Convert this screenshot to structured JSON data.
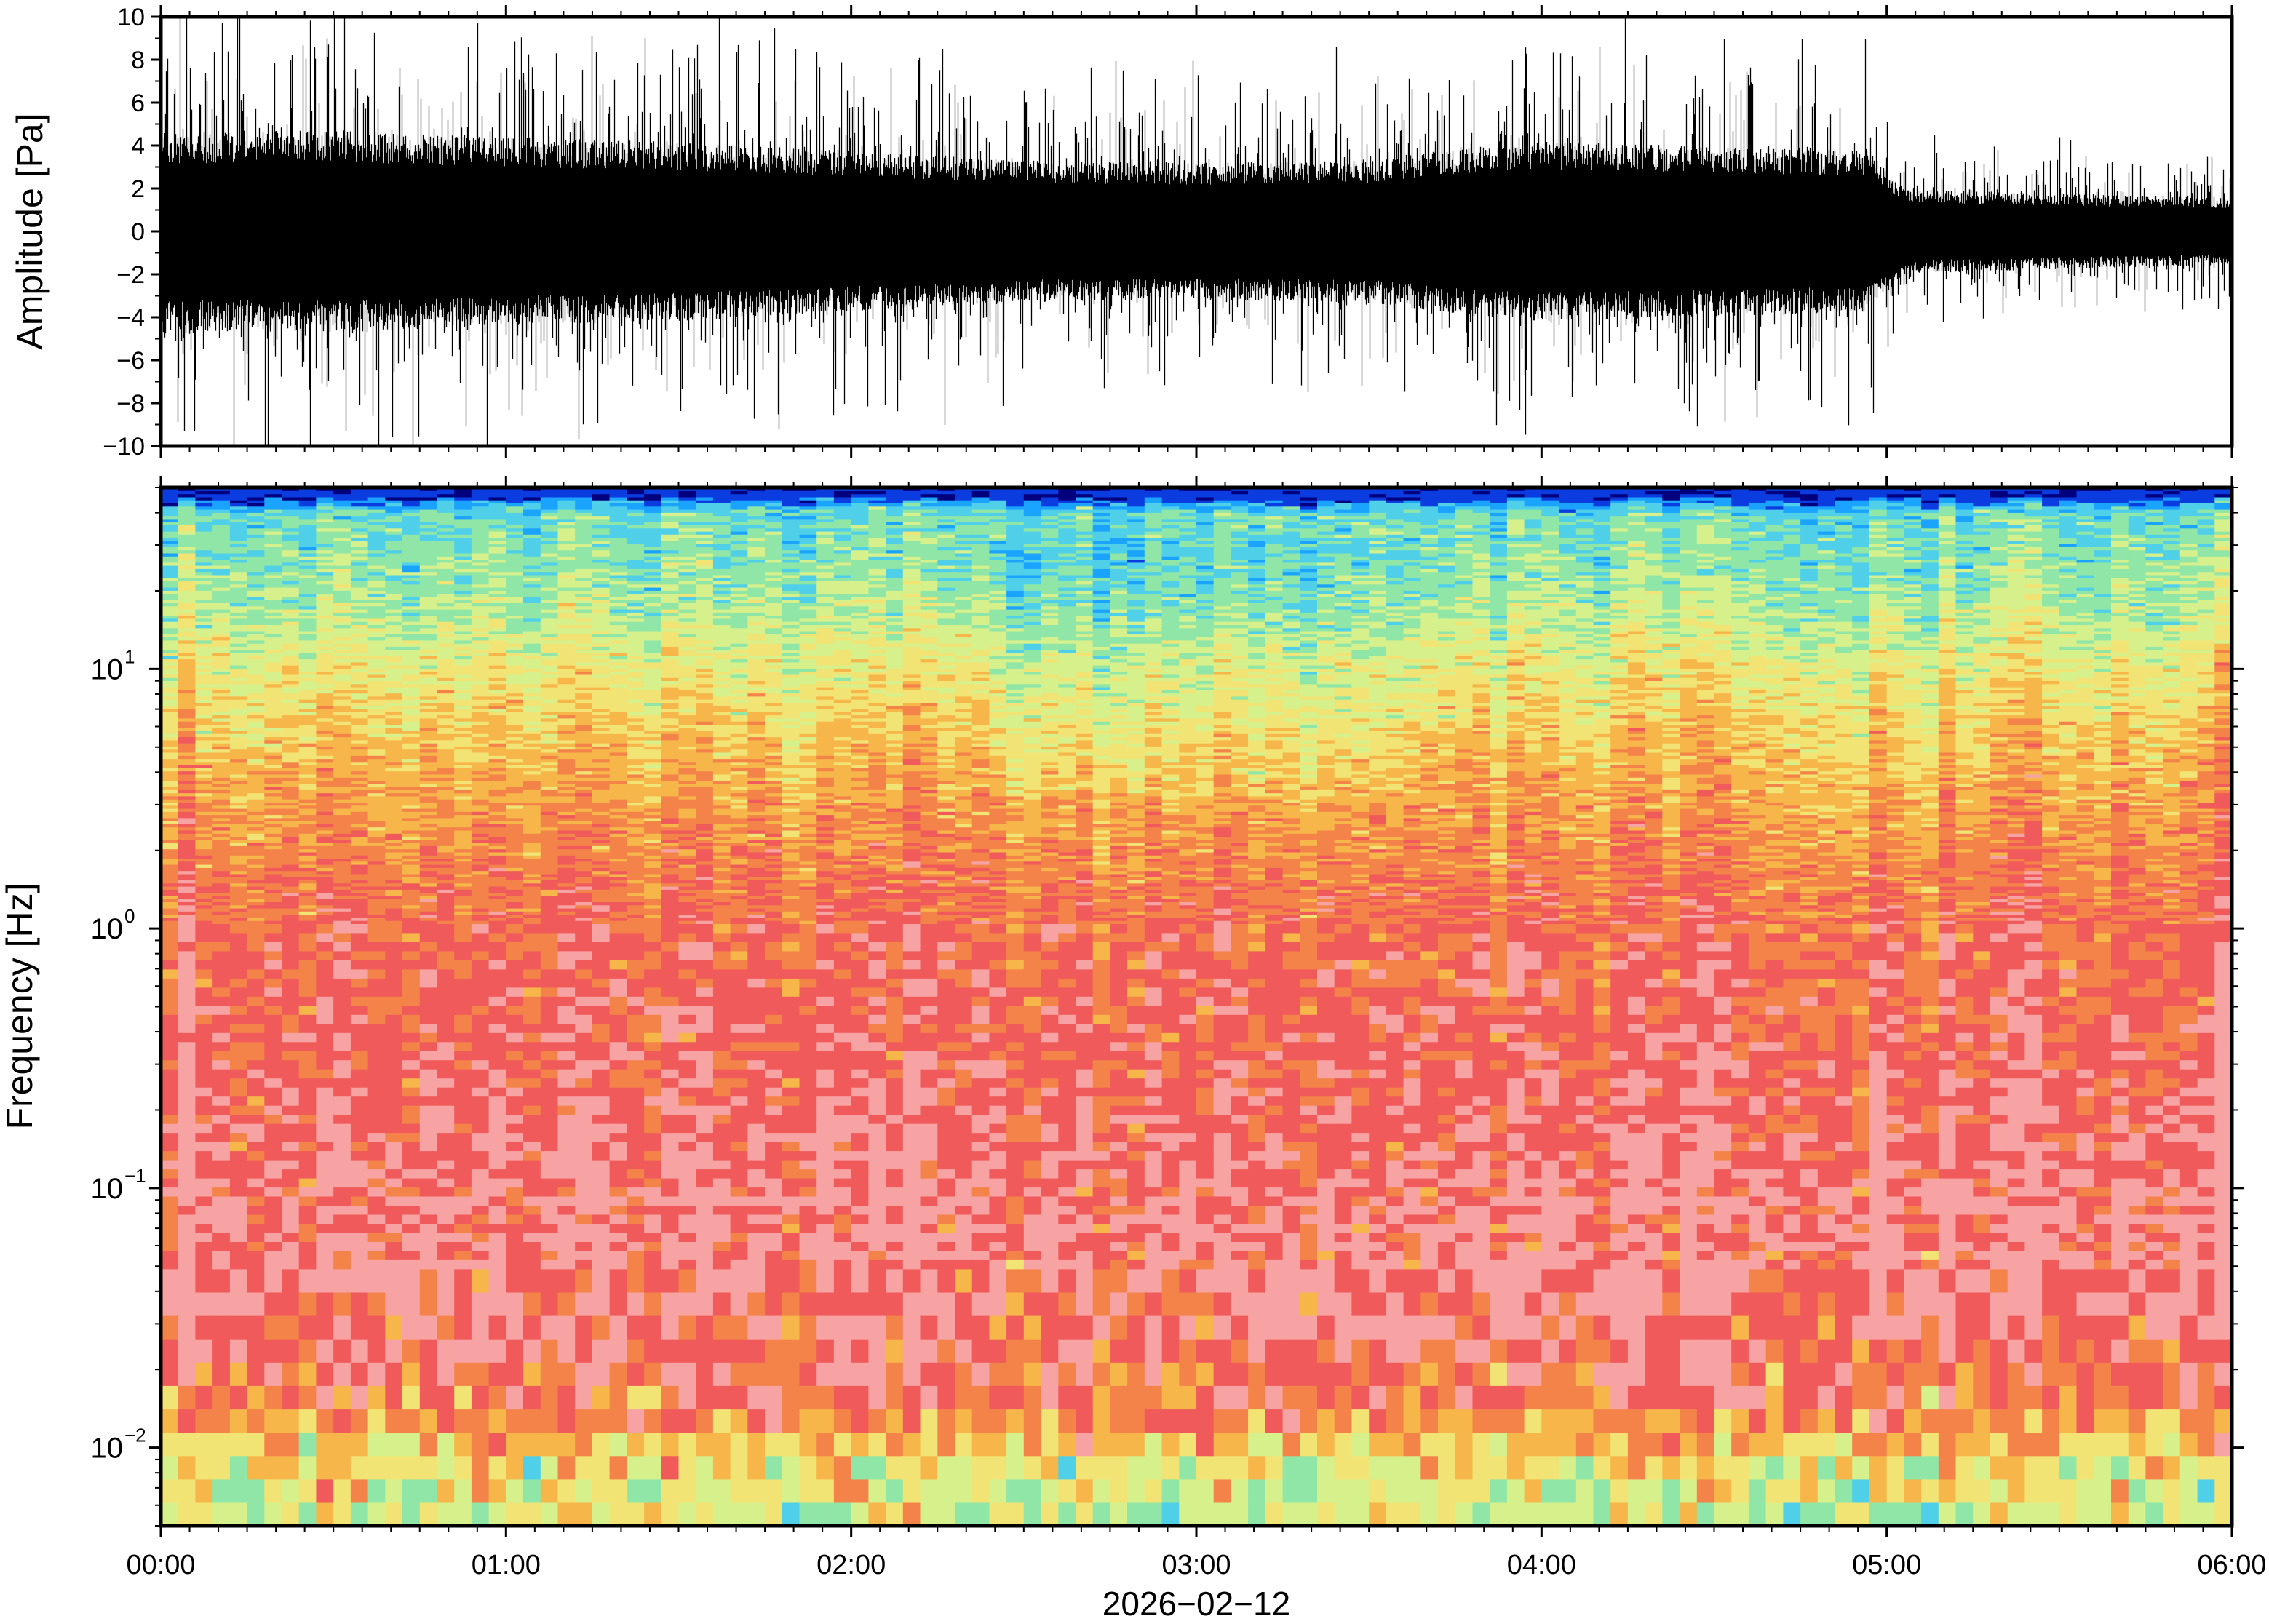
{
  "chart_data": [
    {
      "type": "line",
      "panel": "waveform",
      "ylabel": "Amplitude [Pa]",
      "ylim": [
        -10,
        10
      ],
      "yticks": [
        -10,
        -8,
        -6,
        -4,
        -2,
        0,
        2,
        4,
        6,
        8,
        10
      ],
      "ytick_labels": [
        "−10",
        "−8",
        "−6",
        "−4",
        "−2",
        "0",
        "2",
        "4",
        "6",
        "8",
        "10"
      ],
      "xlim_hours": [
        0,
        6
      ],
      "envelope": {
        "x_hours": [
          0,
          0.5,
          1.0,
          1.5,
          2.0,
          2.5,
          3.0,
          3.5,
          3.8,
          4.0,
          4.5,
          4.95,
          5.05,
          5.5,
          6.0
        ],
        "amplitude": [
          4.2,
          4.3,
          4.0,
          3.8,
          3.4,
          3.0,
          2.9,
          3.0,
          3.6,
          3.8,
          3.6,
          3.4,
          1.8,
          1.6,
          1.4
        ]
      },
      "series_color": "#000000",
      "grid": false
    },
    {
      "type": "heatmap",
      "panel": "spectrogram",
      "ylabel": "Frequency [Hz]",
      "yscale": "log",
      "ylim": [
        0.005,
        50
      ],
      "yticks": [
        {
          "value": 0.01,
          "base": "10",
          "exp": "−2"
        },
        {
          "value": 0.1,
          "base": "10",
          "exp": "−1"
        },
        {
          "value": 1,
          "base": "10",
          "exp": "0"
        },
        {
          "value": 10,
          "base": "10",
          "exp": "1"
        }
      ],
      "xlim_hours": [
        0,
        6
      ],
      "colormap": [
        "#00007f",
        "#0b3ce0",
        "#1aa3ff",
        "#4fd0e8",
        "#8fe6a6",
        "#d6f08c",
        "#f2e474",
        "#f6b64a",
        "#f4834a",
        "#f05a5a",
        "#f7a3a3"
      ],
      "profile": {
        "log10_freq": [
          -2.3,
          -2.1,
          -2.0,
          -1.8,
          -1.5,
          -1.2,
          -1.0,
          -0.5,
          0.0,
          0.5,
          0.8,
          1.0,
          1.3,
          1.6,
          1.68
        ],
        "level": [
          5.0,
          5.6,
          6.6,
          8.6,
          9.4,
          9.7,
          9.5,
          9.0,
          8.7,
          7.4,
          6.4,
          5.7,
          4.3,
          3.5,
          0.2
        ]
      },
      "grid": false
    }
  ],
  "x_axis": {
    "tick_labels": [
      "00:00",
      "01:00",
      "02:00",
      "03:00",
      "04:00",
      "05:00",
      "06:00"
    ],
    "date_label": "2026−02−12"
  },
  "colors": {
    "frame": "#000000",
    "background": "#ffffff"
  }
}
